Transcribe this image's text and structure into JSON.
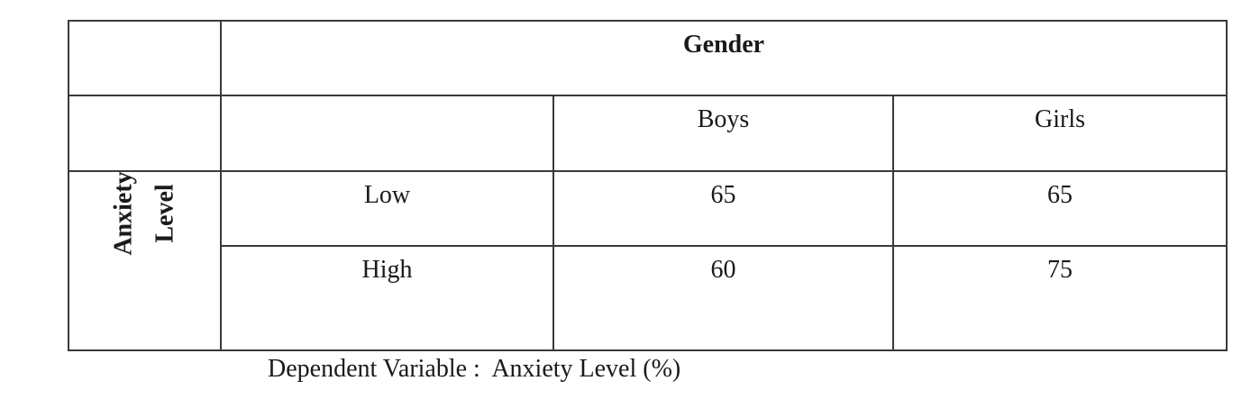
{
  "table": {
    "factor_header": "Gender",
    "columns": [
      "Boys",
      "Girls"
    ],
    "row_factor_line1": "Anxiety",
    "row_factor_line2": "Level",
    "rows": [
      {
        "label": "Low",
        "values": [
          "65",
          "65"
        ]
      },
      {
        "label": "High",
        "values": [
          "60",
          "75"
        ]
      }
    ]
  },
  "caption": {
    "label": "Dependent Variable :",
    "value": "Anxiety Level (%)"
  }
}
